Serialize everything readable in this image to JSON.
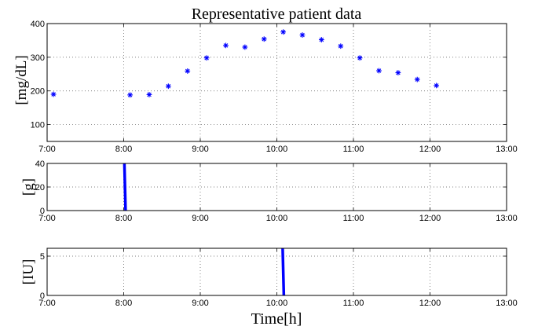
{
  "chart_data": [
    {
      "type": "scatter",
      "title": "Representative patient data",
      "ylabel": "[mg/dL]",
      "xlabel": "",
      "xlim": [
        "7:00",
        "13:00"
      ],
      "ylim": [
        50,
        400
      ],
      "xticks": [
        "7:00",
        "8:00",
        "9:00",
        "10:00",
        "11:00",
        "12:00",
        "13:00"
      ],
      "yticks": [
        "100",
        "200",
        "300",
        "400"
      ],
      "grid": true,
      "marker": "star",
      "color": "#0000ff",
      "points": [
        {
          "x": "7:05",
          "y": 190
        },
        {
          "x": "8:05",
          "y": 188
        },
        {
          "x": "8:20",
          "y": 189
        },
        {
          "x": "8:35",
          "y": 214
        },
        {
          "x": "8:50",
          "y": 259
        },
        {
          "x": "9:05",
          "y": 298
        },
        {
          "x": "9:20",
          "y": 335
        },
        {
          "x": "9:35",
          "y": 330
        },
        {
          "x": "9:50",
          "y": 354
        },
        {
          "x": "10:05",
          "y": 375
        },
        {
          "x": "10:20",
          "y": 366
        },
        {
          "x": "10:35",
          "y": 352
        },
        {
          "x": "10:50",
          "y": 333
        },
        {
          "x": "11:05",
          "y": 298
        },
        {
          "x": "11:20",
          "y": 260
        },
        {
          "x": "11:35",
          "y": 254
        },
        {
          "x": "11:50",
          "y": 234
        },
        {
          "x": "12:05",
          "y": 216
        }
      ]
    },
    {
      "type": "bar",
      "title": "",
      "ylabel": "[g]",
      "xlabel": "",
      "xlim": [
        "7:00",
        "13:00"
      ],
      "ylim": [
        0,
        40
      ],
      "xticks": [
        "7:00",
        "8:00",
        "9:00",
        "10:00",
        "11:00",
        "12:00",
        "13:00"
      ],
      "yticks": [
        "0",
        "20",
        "40"
      ],
      "grid": true,
      "color": "#0000ff",
      "events": [
        {
          "x": "8:01",
          "y": 40
        }
      ]
    },
    {
      "type": "bar",
      "title": "",
      "ylabel": "[IU]",
      "xlabel": "Time[h]",
      "xlim": [
        "7:00",
        "13:00"
      ],
      "ylim": [
        0,
        6
      ],
      "xticks": [
        "7:00",
        "8:00",
        "9:00",
        "10:00",
        "11:00",
        "12:00",
        "13:00"
      ],
      "yticks": [
        "0",
        "5"
      ],
      "grid": true,
      "color": "#0000ff",
      "events": [
        {
          "x": "10:05",
          "y": 6
        }
      ]
    }
  ]
}
